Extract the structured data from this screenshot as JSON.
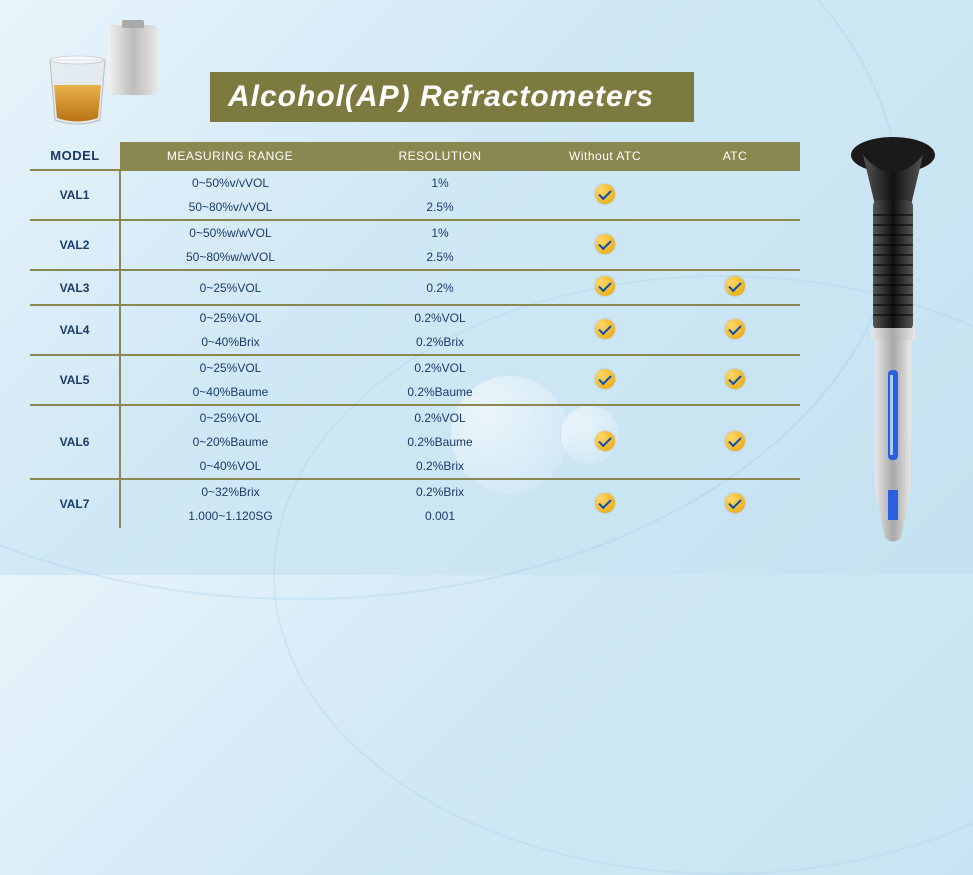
{
  "title": "Alcohol(AP)  Refractometers",
  "colors": {
    "olive": "#8a8751",
    "text": "#1a3a6a",
    "title_bg": "#7d7a3f",
    "title_text": "#ffffff",
    "bg_grad_start": "#e8f4fb",
    "bg_grad_end": "#c5e2f0"
  },
  "columns": {
    "model": "MODEL",
    "range": "MEASURING   RANGE",
    "resolution": "RESOLUTION",
    "without_atc": "Without   ATC",
    "atc": "ATC"
  },
  "rows": [
    {
      "model": "VAL1",
      "lines": [
        {
          "range": "0~50%v/vVOL",
          "resolution": "1%"
        },
        {
          "range": "50~80%v/vVOL",
          "resolution": "2.5%"
        }
      ],
      "without_atc": true,
      "atc": false
    },
    {
      "model": "VAL2",
      "lines": [
        {
          "range": "0~50%w/wVOL",
          "resolution": "1%"
        },
        {
          "range": "50~80%w/wVOL",
          "resolution": "2.5%"
        }
      ],
      "without_atc": true,
      "atc": false
    },
    {
      "model": "VAL3",
      "lines": [
        {
          "range": "0~25%VOL",
          "resolution": "0.2%"
        }
      ],
      "without_atc": true,
      "atc": true
    },
    {
      "model": "VAL4",
      "lines": [
        {
          "range": "0~25%VOL",
          "resolution": "0.2%VOL"
        },
        {
          "range": "0~40%Brix",
          "resolution": "0.2%Brix"
        }
      ],
      "without_atc": true,
      "atc": true
    },
    {
      "model": "VAL5",
      "lines": [
        {
          "range": "0~25%VOL",
          "resolution": "0.2%VOL"
        },
        {
          "range": "0~40%Baume",
          "resolution": "0.2%Baume"
        }
      ],
      "without_atc": true,
      "atc": true
    },
    {
      "model": "VAL6",
      "lines": [
        {
          "range": "0~25%VOL",
          "resolution": "0.2%VOL"
        },
        {
          "range": "0~20%Baume",
          "resolution": "0.2%Baume"
        },
        {
          "range": "0~40%VOL",
          "resolution": "0.2%Brix"
        }
      ],
      "without_atc": true,
      "atc": true
    },
    {
      "model": "VAL7",
      "lines": [
        {
          "range": "0~32%Brix",
          "resolution": "0.2%Brix"
        },
        {
          "range": "1.000~1.120SG",
          "resolution": "0.001"
        }
      ],
      "without_atc": true,
      "atc": true
    }
  ]
}
